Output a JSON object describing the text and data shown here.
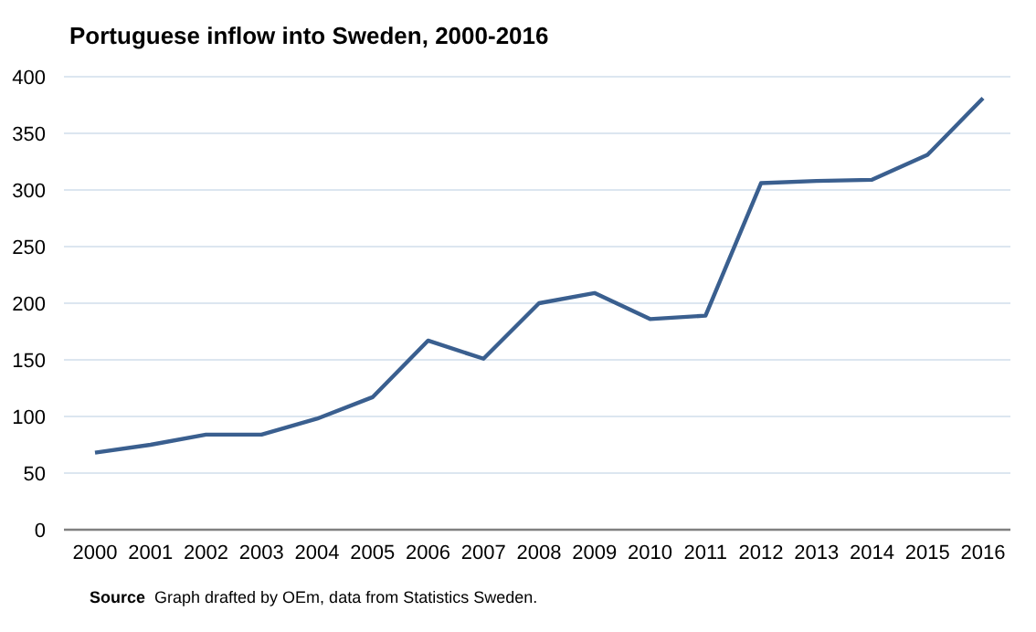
{
  "chart_data": {
    "type": "line",
    "title": "Portuguese inflow into Sweden, 2000-2016",
    "categories": [
      "2000",
      "2001",
      "2002",
      "2003",
      "2004",
      "2005",
      "2006",
      "2007",
      "2008",
      "2009",
      "2010",
      "2011",
      "2012",
      "2013",
      "2014",
      "2015",
      "2016"
    ],
    "series": [
      {
        "color": "#3a5f8f",
        "values": [
          68,
          75,
          84,
          84,
          98,
          117,
          167,
          151,
          200,
          209,
          186,
          189,
          306,
          308,
          309,
          331,
          381
        ]
      }
    ],
    "ylim": [
      0,
      400
    ],
    "yticks": [
      0,
      50,
      100,
      150,
      200,
      250,
      300,
      350,
      400
    ],
    "grid": "y",
    "marker": "none",
    "line_style": "solid",
    "annotations": [
      "Source",
      "Graph drafted by OEm, data from Statistics Sweden."
    ]
  }
}
